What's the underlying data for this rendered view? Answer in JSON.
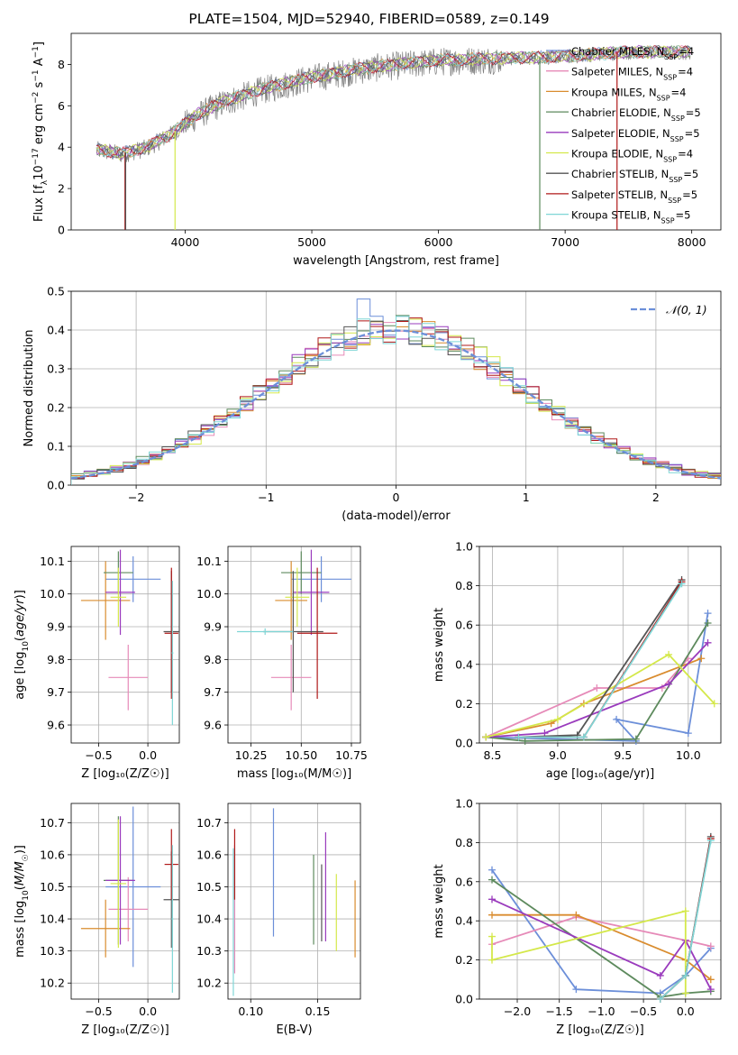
{
  "title": "PLATE=1504, MJD=52940, FIBERID=0589, z=0.149",
  "colors": {
    "Chabrier MILES": "#6c8fd9",
    "Salpeter MILES": "#e68ab8",
    "Kroupa MILES": "#d98c2e",
    "Chabrier ELODIE": "#5d8a5d",
    "Salpeter ELODIE": "#9a3bbd",
    "Kroupa ELODIE": "#d4e84a",
    "Chabrier STELIB": "#555555",
    "Salpeter STELIB": "#b01818",
    "Kroupa STELIB": "#7fd6d6",
    "data": "#808080"
  },
  "chart_data": [
    {
      "id": "spectrum",
      "type": "line",
      "xlabel": "wavelength [Angstrom, rest frame]",
      "ylabel": "Flux [f$_\\lambda$10$^{-17}$ erg cm$^{-2}$ s$^{-1}$ A$^{-1}$]",
      "xlim": [
        3100,
        8230
      ],
      "ylim": [
        0,
        9.5
      ],
      "xticks": [
        4000,
        5000,
        6000,
        7000,
        8000
      ],
      "yticks": [
        0,
        2,
        4,
        6,
        8
      ],
      "legend_position": "top-right",
      "legend": [
        {
          "sub": "Chabrier MILES, N",
          "n": "4",
          "color_key": "Chabrier MILES"
        },
        {
          "sub": "Salpeter MILES, N",
          "n": "4",
          "color_key": "Salpeter MILES"
        },
        {
          "sub": "Kroupa MILES, N",
          "n": "4",
          "color_key": "Kroupa MILES"
        },
        {
          "sub": "Chabrier ELODIE, N",
          "n": "5",
          "color_key": "Chabrier ELODIE"
        },
        {
          "sub": "Salpeter ELODIE, N",
          "n": "5",
          "color_key": "Salpeter ELODIE"
        },
        {
          "sub": "Kroupa ELODIE, N",
          "n": "4",
          "color_key": "Kroupa ELODIE"
        },
        {
          "sub": "Chabrier STELIB, N",
          "n": "5",
          "color_key": "Chabrier STELIB"
        },
        {
          "sub": "Salpeter STELIB, N",
          "n": "5",
          "color_key": "Salpeter STELIB"
        },
        {
          "sub": "Kroupa STELIB, N",
          "n": "5",
          "color_key": "Kroupa STELIB"
        }
      ],
      "legend_sub_ssp": "SSP",
      "continuum": [
        [
          3300,
          3.9
        ],
        [
          3500,
          3.7
        ],
        [
          3700,
          4.0
        ],
        [
          3900,
          4.7
        ],
        [
          4100,
          5.6
        ],
        [
          4300,
          6.2
        ],
        [
          4600,
          6.8
        ],
        [
          5000,
          7.4
        ],
        [
          5500,
          7.9
        ],
        [
          6000,
          8.2
        ],
        [
          6500,
          8.3
        ],
        [
          7000,
          8.4
        ],
        [
          7500,
          8.6
        ],
        [
          8000,
          8.6
        ]
      ],
      "drops": [
        {
          "x": 3525,
          "color_key": "Salpeter STELIB"
        },
        {
          "x": 3530,
          "color_key": "Chabrier STELIB"
        },
        {
          "x": 3920,
          "color_key": "Kroupa ELODIE"
        },
        {
          "x": 6800,
          "color_key": "Chabrier ELODIE"
        },
        {
          "x": 7410,
          "color_key": "Salpeter STELIB"
        }
      ]
    },
    {
      "id": "residuals",
      "type": "histogram",
      "xlabel": "(data-model)/error",
      "ylabel": "Normed distribution",
      "xlim": [
        -2.5,
        2.5
      ],
      "ylim": [
        0,
        0.5
      ],
      "xticks": [
        -2,
        -1,
        0,
        1,
        2
      ],
      "yticks": [
        0.0,
        0.1,
        0.2,
        0.3,
        0.4,
        0.5
      ],
      "legend_position": "top-right",
      "gaussian_label": "𝒩(0, 1)",
      "gaussian_color": "#6c8fd9",
      "bin_width": 0.1,
      "bin_start": -2.5
    },
    {
      "id": "age-vs-Z",
      "type": "scatter",
      "xlabel": "Z [log₁₀(Z/Z☉)]",
      "ylabel": "age  [log₁₀(age/yr)]",
      "xlim": [
        -0.78,
        0.32
      ],
      "ylim": [
        9.545,
        10.145
      ],
      "xticks": [
        -0.5,
        0.0
      ],
      "yticks": [
        9.6,
        9.7,
        9.8,
        9.9,
        10.0,
        10.1
      ],
      "points": [
        {
          "color_key": "Chabrier MILES",
          "x": -0.15,
          "xerr": 0.28,
          "y": 10.045,
          "yerr": 0.07
        },
        {
          "color_key": "Salpeter MILES",
          "x": -0.2,
          "xerr": 0.2,
          "y": 9.745,
          "yerr": 0.1
        },
        {
          "color_key": "Kroupa MILES",
          "x": -0.43,
          "xerr": 0.25,
          "y": 9.98,
          "yerr": 0.12
        },
        {
          "color_key": "Chabrier ELODIE",
          "x": -0.3,
          "xerr": 0.15,
          "y": 10.065,
          "yerr": 0.065
        },
        {
          "color_key": "Salpeter ELODIE",
          "x": -0.28,
          "xerr": 0.15,
          "y": 10.005,
          "yerr": 0.13
        },
        {
          "color_key": "Kroupa ELODIE",
          "x": -0.3,
          "xerr": 0.08,
          "y": 9.99,
          "yerr": 0.09
        },
        {
          "color_key": "Chabrier STELIB",
          "x": 0.24,
          "xerr": 0.08,
          "y": 9.885,
          "yerr": 0.185
        },
        {
          "color_key": "Salpeter STELIB",
          "x": 0.24,
          "xerr": 0.07,
          "y": 9.88,
          "yerr": 0.2
        },
        {
          "color_key": "Kroupa STELIB",
          "x": 0.25,
          "xerr": 0.01,
          "y": 9.82,
          "yerr": 0.22
        }
      ]
    },
    {
      "id": "age-vs-mass",
      "type": "scatter",
      "xlabel": "mass [log₁₀(M/M☉)]",
      "ylabel": "",
      "xlim": [
        10.135,
        10.795
      ],
      "ylim": [
        9.545,
        10.145
      ],
      "xticks": [
        10.25,
        10.5,
        10.75
      ],
      "yticks": [
        9.6,
        9.7,
        9.8,
        9.9,
        10.0,
        10.1
      ],
      "points": [
        {
          "color_key": "Chabrier MILES",
          "x": 10.6,
          "xerr": 0.15,
          "y": 10.045,
          "yerr": 0.07
        },
        {
          "color_key": "Salpeter MILES",
          "x": 10.45,
          "xerr": 0.1,
          "y": 9.745,
          "yerr": 0.1
        },
        {
          "color_key": "Kroupa MILES",
          "x": 10.45,
          "xerr": 0.08,
          "y": 9.98,
          "yerr": 0.12
        },
        {
          "color_key": "Chabrier ELODIE",
          "x": 10.5,
          "xerr": 0.1,
          "y": 10.065,
          "yerr": 0.065
        },
        {
          "color_key": "Salpeter ELODIE",
          "x": 10.55,
          "xerr": 0.09,
          "y": 10.005,
          "yerr": 0.13
        },
        {
          "color_key": "Kroupa ELODIE",
          "x": 10.48,
          "xerr": 0.06,
          "y": 9.99,
          "yerr": 0.09
        },
        {
          "color_key": "Chabrier STELIB",
          "x": 10.46,
          "xerr": 0.15,
          "y": 9.885,
          "yerr": 0.185
        },
        {
          "color_key": "Salpeter STELIB",
          "x": 10.58,
          "xerr": 0.1,
          "y": 9.88,
          "yerr": 0.2
        },
        {
          "color_key": "Kroupa STELIB",
          "x": 10.32,
          "xerr": 0.14,
          "y": 9.885,
          "yerr": 0.01
        }
      ]
    },
    {
      "id": "massweight-vs-age",
      "type": "line",
      "xlabel": "age  [log₁₀(age/yr)]",
      "ylabel": "mass weight",
      "xlim": [
        8.4,
        10.25
      ],
      "ylim": [
        0,
        1
      ],
      "xticks": [
        8.5,
        9.0,
        9.5,
        10.0
      ],
      "yticks": [
        0.0,
        0.2,
        0.4,
        0.6,
        0.8,
        1.0
      ],
      "series": [
        {
          "color_key": "Chabrier MILES",
          "points": [
            [
              8.45,
              0.03
            ],
            [
              9.6,
              0.01
            ],
            [
              9.45,
              0.12
            ],
            [
              10.0,
              0.05
            ],
            [
              10.15,
              0.66
            ]
          ]
        },
        {
          "color_key": "Salpeter MILES",
          "points": [
            [
              8.45,
              0.03
            ],
            [
              9.3,
              0.28
            ],
            [
              9.8,
              0.28
            ],
            [
              10.0,
              0.43
            ]
          ]
        },
        {
          "color_key": "Kroupa MILES",
          "points": [
            [
              8.45,
              0.03
            ],
            [
              8.95,
              0.1
            ],
            [
              9.2,
              0.2
            ],
            [
              10.1,
              0.43
            ]
          ]
        },
        {
          "color_key": "Chabrier ELODIE",
          "points": [
            [
              8.45,
              0.03
            ],
            [
              8.75,
              0.01
            ],
            [
              9.6,
              0.02
            ],
            [
              10.15,
              0.61
            ]
          ]
        },
        {
          "color_key": "Salpeter ELODIE",
          "points": [
            [
              8.45,
              0.03
            ],
            [
              8.9,
              0.05
            ],
            [
              9.85,
              0.3
            ],
            [
              10.15,
              0.51
            ]
          ]
        },
        {
          "color_key": "Kroupa ELODIE",
          "points": [
            [
              8.45,
              0.03
            ],
            [
              9.0,
              0.12
            ],
            [
              9.85,
              0.45
            ],
            [
              10.2,
              0.2
            ]
          ]
        },
        {
          "color_key": "Chabrier STELIB",
          "points": [
            [
              8.7,
              0.03
            ],
            [
              9.15,
              0.04
            ],
            [
              9.95,
              0.83
            ]
          ]
        },
        {
          "color_key": "Salpeter STELIB",
          "points": [
            [
              8.7,
              0.03
            ],
            [
              9.2,
              0.03
            ],
            [
              9.95,
              0.82
            ]
          ]
        },
        {
          "color_key": "Kroupa STELIB",
          "points": [
            [
              8.7,
              0.03
            ],
            [
              9.2,
              0.03
            ],
            [
              9.95,
              0.81
            ]
          ]
        }
      ]
    },
    {
      "id": "mass-vs-Z",
      "type": "scatter",
      "xlabel": "Z [log₁₀(Z/Z☉)]",
      "ylabel": "mass [log₁₀(M/M☉)]",
      "xlim": [
        -0.78,
        0.32
      ],
      "ylim": [
        10.15,
        10.76
      ],
      "xticks": [
        -0.5,
        0.0
      ],
      "yticks": [
        10.2,
        10.3,
        10.4,
        10.5,
        10.6,
        10.7
      ],
      "points": [
        {
          "color_key": "Chabrier MILES",
          "x": -0.15,
          "xerr": 0.28,
          "y": 10.5,
          "yerr": 0.25
        },
        {
          "color_key": "Salpeter MILES",
          "x": -0.2,
          "xerr": 0.2,
          "y": 10.43,
          "yerr": 0.1
        },
        {
          "color_key": "Kroupa MILES",
          "x": -0.43,
          "xerr": 0.25,
          "y": 10.37,
          "yerr": 0.09
        },
        {
          "color_key": "Chabrier ELODIE",
          "x": -0.3,
          "xerr": 0.15,
          "y": 10.52,
          "yerr": 0.2
        },
        {
          "color_key": "Salpeter ELODIE",
          "x": -0.28,
          "xerr": 0.15,
          "y": 10.52,
          "yerr": 0.2
        },
        {
          "color_key": "Kroupa ELODIE",
          "x": -0.3,
          "xerr": 0.08,
          "y": 10.51,
          "yerr": 0.2
        },
        {
          "color_key": "Chabrier STELIB",
          "x": 0.24,
          "xerr": 0.08,
          "y": 10.46,
          "yerr": 0.15
        },
        {
          "color_key": "Salpeter STELIB",
          "x": 0.24,
          "xerr": 0.07,
          "y": 10.57,
          "yerr": 0.11
        },
        {
          "color_key": "Kroupa STELIB",
          "x": 0.25,
          "xerr": 0.01,
          "y": 10.4,
          "yerr": 0.23
        }
      ]
    },
    {
      "id": "mass-vs-ebv",
      "type": "scatter",
      "xlabel": "E(B-V)",
      "ylabel": "",
      "xlim": [
        0.083,
        0.182
      ],
      "ylim": [
        10.15,
        10.76
      ],
      "xticks": [
        0.1,
        0.15
      ],
      "yticks": [
        10.2,
        10.3,
        10.4,
        10.5,
        10.6,
        10.7
      ],
      "points": [
        {
          "color_key": "Chabrier MILES",
          "x": 0.117,
          "xerr": 0,
          "y": 10.545,
          "yerr": 0.2
        },
        {
          "color_key": "Salpeter MILES",
          "x": 0.088,
          "xerr": 0,
          "y": 10.43,
          "yerr": 0.2
        },
        {
          "color_key": "Kroupa MILES",
          "x": 0.178,
          "xerr": 0,
          "y": 10.4,
          "yerr": 0.12
        },
        {
          "color_key": "Chabrier ELODIE",
          "x": 0.147,
          "xerr": 0,
          "y": 10.46,
          "yerr": 0.14
        },
        {
          "color_key": "Salpeter ELODIE",
          "x": 0.156,
          "xerr": 0,
          "y": 10.5,
          "yerr": 0.17
        },
        {
          "color_key": "Kroupa ELODIE",
          "x": 0.164,
          "xerr": 0,
          "y": 10.42,
          "yerr": 0.12
        },
        {
          "color_key": "Chabrier STELIB",
          "x": 0.153,
          "xerr": 0,
          "y": 10.45,
          "yerr": 0.12
        },
        {
          "color_key": "Salpeter STELIB",
          "x": 0.088,
          "xerr": 0,
          "y": 10.57,
          "yerr": 0.11
        },
        {
          "color_key": "Kroupa STELIB",
          "x": 0.087,
          "xerr": 0,
          "y": 10.39,
          "yerr": 0.23
        }
      ]
    },
    {
      "id": "massweight-vs-Z",
      "type": "line",
      "xlabel": "Z [log₁₀(Z/Z☉)]",
      "ylabel": "mass weight",
      "xlim": [
        -2.45,
        0.42
      ],
      "ylim": [
        0,
        1
      ],
      "xticks": [
        -2.0,
        -1.5,
        -1.0,
        -0.5,
        0.0
      ],
      "yticks": [
        0.0,
        0.2,
        0.4,
        0.6,
        0.8,
        1.0
      ],
      "series": [
        {
          "color_key": "Chabrier MILES",
          "points": [
            [
              -2.3,
              0.66
            ],
            [
              -1.3,
              0.05
            ],
            [
              -0.3,
              0.03
            ],
            [
              0.0,
              0.12
            ],
            [
              0.3,
              0.26
            ]
          ]
        },
        {
          "color_key": "Salpeter MILES",
          "points": [
            [
              -2.3,
              0.28
            ],
            [
              -1.3,
              0.42
            ],
            [
              0.0,
              0.3
            ],
            [
              0.3,
              0.27
            ]
          ]
        },
        {
          "color_key": "Kroupa MILES",
          "points": [
            [
              -2.3,
              0.43
            ],
            [
              -1.3,
              0.43
            ],
            [
              0.0,
              0.2
            ],
            [
              0.3,
              0.1
            ]
          ]
        },
        {
          "color_key": "Chabrier ELODIE",
          "points": [
            [
              -2.3,
              0.61
            ],
            [
              -0.3,
              0.01
            ],
            [
              0.0,
              0.03
            ],
            [
              0.3,
              0.04
            ]
          ]
        },
        {
          "color_key": "Salpeter ELODIE",
          "points": [
            [
              -2.3,
              0.51
            ],
            [
              -0.3,
              0.12
            ],
            [
              0.0,
              0.3
            ],
            [
              0.3,
              0.05
            ]
          ]
        },
        {
          "color_key": "Kroupa ELODIE",
          "points": [
            [
              -2.3,
              0.32
            ],
            [
              -2.3,
              0.2
            ],
            [
              0.0,
              0.45
            ],
            [
              0.0,
              0.03
            ]
          ]
        },
        {
          "color_key": "Chabrier STELIB",
          "points": [
            [
              -0.3,
              0.0
            ],
            [
              0.0,
              0.12
            ],
            [
              0.3,
              0.83
            ]
          ]
        },
        {
          "color_key": "Salpeter STELIB",
          "points": [
            [
              -0.3,
              0.0
            ],
            [
              0.0,
              0.12
            ],
            [
              0.3,
              0.82
            ]
          ]
        },
        {
          "color_key": "Kroupa STELIB",
          "points": [
            [
              -0.3,
              0.0
            ],
            [
              0.0,
              0.12
            ],
            [
              0.3,
              0.81
            ]
          ]
        }
      ]
    }
  ]
}
